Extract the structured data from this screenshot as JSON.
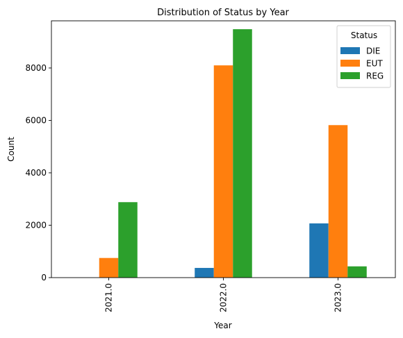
{
  "chart_data": {
    "type": "bar",
    "title": "Distribution of Status by Year",
    "xlabel": "Year",
    "ylabel": "Count",
    "categories": [
      "2021.0",
      "2022.0",
      "2023.0"
    ],
    "series": [
      {
        "name": "DIE",
        "color": "#1f77b4",
        "values": [
          0,
          370,
          2070
        ]
      },
      {
        "name": "EUT",
        "color": "#ff7f0e",
        "values": [
          750,
          8100,
          5820
        ]
      },
      {
        "name": "REG",
        "color": "#2ca02c",
        "values": [
          2880,
          9480,
          430
        ]
      }
    ],
    "yticks": [
      0,
      2000,
      4000,
      6000,
      8000
    ],
    "ylim": [
      0,
      9800
    ],
    "legend": {
      "title": "Status",
      "placement": "top-right"
    },
    "grid": false
  }
}
